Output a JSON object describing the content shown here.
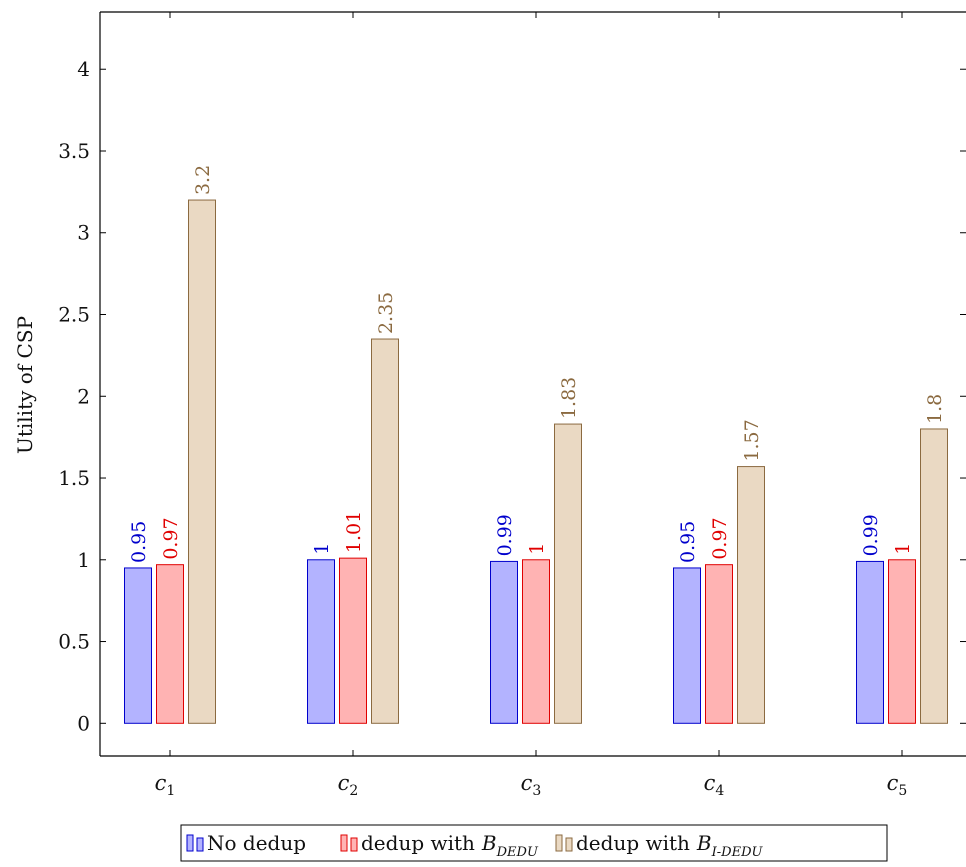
{
  "chart_data": {
    "type": "bar",
    "title": "",
    "xlabel": "",
    "ylabel": "Utility of CSP",
    "ylim": [
      -0.2,
      4.35
    ],
    "yticks": [
      0,
      0.5,
      1,
      1.5,
      2,
      2.5,
      3,
      3.5,
      4
    ],
    "ytick_labels": [
      "0",
      "0.5",
      "1",
      "1.5",
      "2",
      "2.5",
      "3",
      "3.5",
      "4"
    ],
    "grid": false,
    "legend_position": "bottom-center",
    "categories": [
      {
        "base": "c",
        "sub": "1"
      },
      {
        "base": "c",
        "sub": "2"
      },
      {
        "base": "c",
        "sub": "3"
      },
      {
        "base": "c",
        "sub": "4"
      },
      {
        "base": "c",
        "sub": "5"
      }
    ],
    "series": [
      {
        "key": "no_dedup",
        "name": "No dedup",
        "values": [
          0.95,
          1,
          0.99,
          0.95,
          0.99
        ],
        "labels": [
          "0.95",
          "1",
          "0.99",
          "0.95",
          "0.99"
        ],
        "fill": "#b3b3ff",
        "stroke": "#0000cc",
        "label_color": "#0000cc"
      },
      {
        "key": "dedup_bdedu",
        "name": "dedup with",
        "name_symbol": "B",
        "name_subscript": "DEDU",
        "values": [
          0.97,
          1.01,
          1,
          0.97,
          1
        ],
        "labels": [
          "0.97",
          "1.01",
          "1",
          "0.97",
          "1"
        ],
        "fill": "#ffb3b3",
        "stroke": "#e00000",
        "label_color": "#e00000"
      },
      {
        "key": "dedup_bidedu",
        "name": "dedup with",
        "name_symbol": "B",
        "name_subscript": "I-DEDU",
        "values": [
          3.2,
          2.35,
          1.83,
          1.57,
          1.8
        ],
        "labels": [
          "3.2",
          "2.35",
          "1.83",
          "1.57",
          "1.8"
        ],
        "fill": "#ead9c3",
        "stroke": "#8b6a40",
        "label_color": "#8b6a40"
      }
    ]
  }
}
